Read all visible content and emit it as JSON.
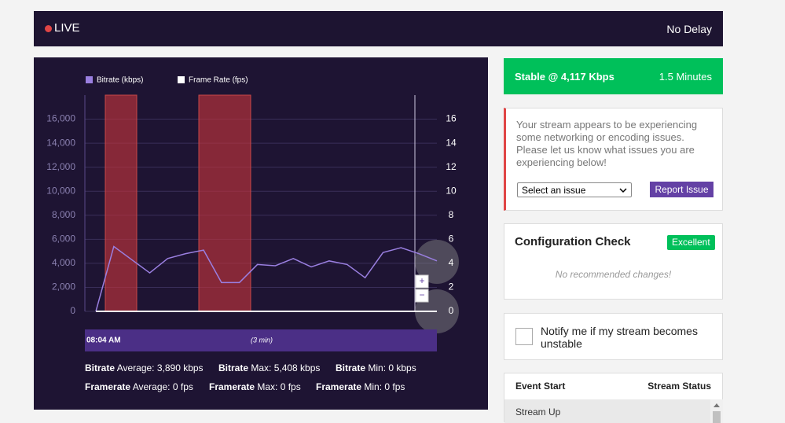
{
  "header": {
    "live": "LIVE",
    "delay": "No Delay"
  },
  "chart_data": {
    "type": "line",
    "series": [
      {
        "name": "Bitrate (kbps)",
        "color": "#9a7fe0",
        "values": [
          0,
          5400,
          4300,
          3200,
          4400,
          4800,
          5100,
          2400,
          2400,
          3900,
          3800,
          4400,
          3700,
          4200,
          3900,
          2800,
          4900,
          5300,
          4800,
          4200
        ]
      },
      {
        "name": "Frame Rate (fps)",
        "color": "#ffffff",
        "axis": "y2",
        "values": [
          0,
          0,
          0,
          0,
          0,
          0,
          0,
          0,
          0,
          0,
          0,
          0,
          0,
          0,
          0,
          0,
          0,
          0,
          0,
          0
        ]
      }
    ],
    "ylim": [
      0,
      18000
    ],
    "yticks": [
      0,
      {
        "value": 2000,
        "label": "2,000"
      },
      {
        "value": 4000,
        "label": "4,000"
      },
      {
        "value": 6000,
        "label": "6,000"
      },
      {
        "value": 8000,
        "label": "8,000"
      },
      {
        "value": 10000,
        "label": "10,000"
      },
      {
        "value": 12000,
        "label": "12,000"
      },
      {
        "value": 14000,
        "label": "14,000"
      },
      {
        "value": 16000,
        "label": "16,000"
      }
    ],
    "y2lim": [
      0,
      18
    ],
    "y2ticks": [
      0,
      2,
      4,
      6,
      8,
      10,
      12,
      14,
      16
    ],
    "grid": true,
    "timeline": {
      "start": "08:04 AM",
      "duration": "(3 min)"
    },
    "zoom": [
      "+",
      "−"
    ]
  },
  "stats": [
    [
      {
        "label": "Bitrate",
        "text": "Average: 3,890 kbps"
      },
      {
        "label": "Bitrate",
        "text": "Max: 5,408 kbps"
      },
      {
        "label": "Bitrate",
        "text": "Min: 0 kbps"
      }
    ],
    [
      {
        "label": "Framerate",
        "text": "Average: 0 fps"
      },
      {
        "label": "Framerate",
        "text": "Max: 0 fps"
      },
      {
        "label": "Framerate",
        "text": "Min: 0 fps"
      }
    ]
  ],
  "status": {
    "text": "Stable @ 4,117 Kbps",
    "duration": "1.5 Minutes"
  },
  "issue": {
    "message": "Your stream appears to be experiencing some networking or encoding issues. Please let us know what issues you are experiencing below!",
    "select": "Select an issue",
    "button": "Report Issue"
  },
  "config": {
    "title": "Configuration Check",
    "badge": "Excellent",
    "note": "No recommended changes!"
  },
  "notify": {
    "label": "Notify me if my stream becomes unstable"
  },
  "events": {
    "headers": [
      "Event Start",
      "Stream Status"
    ],
    "rows": [
      [
        "Stream Up"
      ]
    ]
  }
}
